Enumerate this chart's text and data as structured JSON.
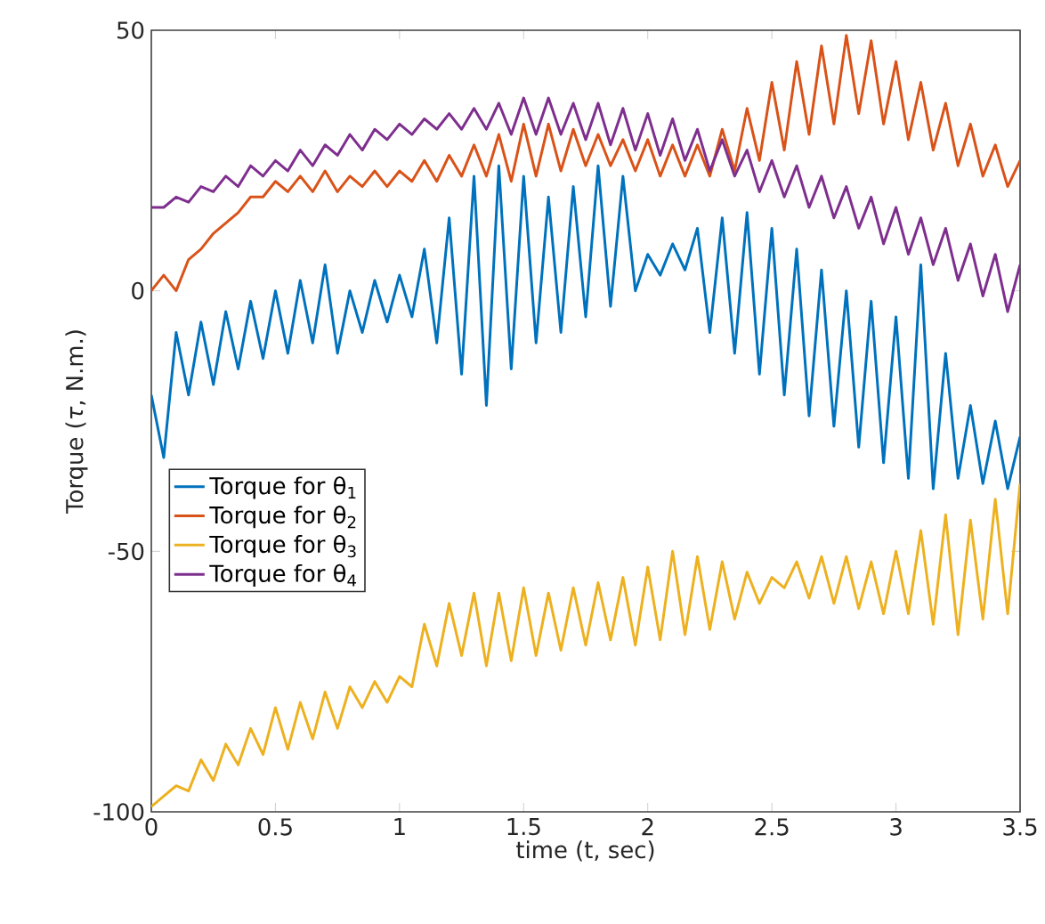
{
  "chart_data": {
    "type": "line",
    "xlabel": "time (t, sec)",
    "ylabel": "Torque (*τ*, N.m.)",
    "x": [
      0,
      0.05,
      0.1,
      0.15,
      0.2,
      0.25,
      0.3,
      0.35,
      0.4,
      0.45,
      0.5,
      0.55,
      0.6,
      0.65,
      0.7,
      0.75,
      0.8,
      0.85,
      0.9,
      0.95,
      1.0,
      1.05,
      1.1,
      1.15,
      1.2,
      1.25,
      1.3,
      1.35,
      1.4,
      1.45,
      1.5,
      1.55,
      1.6,
      1.65,
      1.7,
      1.75,
      1.8,
      1.85,
      1.9,
      1.95,
      2.0,
      2.05,
      2.1,
      2.15,
      2.2,
      2.25,
      2.3,
      2.35,
      2.4,
      2.45,
      2.5,
      2.55,
      2.6,
      2.65,
      2.7,
      2.75,
      2.8,
      2.85,
      2.9,
      2.95,
      3.0,
      3.05,
      3.1,
      3.15,
      3.2,
      3.25,
      3.3,
      3.35,
      3.4,
      3.45,
      3.5
    ],
    "series": [
      {
        "name": "Torque for θ$_{1}$",
        "color": "#0072bd",
        "values": [
          -20,
          -32,
          -8,
          -20,
          -6,
          -18,
          -4,
          -15,
          -2,
          -13,
          0,
          -12,
          2,
          -10,
          5,
          -12,
          0,
          -8,
          2,
          -6,
          3,
          -5,
          8,
          -10,
          14,
          -16,
          22,
          -22,
          24,
          -15,
          22,
          -10,
          18,
          -8,
          20,
          -5,
          24,
          -3,
          22,
          0,
          7,
          3,
          9,
          4,
          12,
          -8,
          14,
          -12,
          15,
          -16,
          12,
          -20,
          8,
          -24,
          4,
          -26,
          0,
          -30,
          -2,
          -33,
          -5,
          -36,
          5,
          -38,
          -12,
          -36,
          -22,
          -37,
          -25,
          -38,
          -28
        ]
      },
      {
        "name": "Torque for θ$_{2}$",
        "color": "#d95319",
        "values": [
          0,
          3,
          0,
          6,
          8,
          11,
          13,
          15,
          18,
          18,
          21,
          19,
          22,
          19,
          23,
          19,
          22,
          20,
          23,
          20,
          23,
          21,
          25,
          21,
          26,
          22,
          28,
          22,
          30,
          21,
          32,
          22,
          32,
          23,
          31,
          24,
          30,
          24,
          29,
          23,
          29,
          22,
          28,
          22,
          28,
          22,
          31,
          23,
          35,
          25,
          40,
          27,
          44,
          30,
          47,
          32,
          49,
          34,
          48,
          32,
          44,
          29,
          40,
          27,
          36,
          24,
          32,
          22,
          28,
          20,
          25
        ]
      },
      {
        "name": "Torque for θ$_{3}$",
        "color": "#edb120",
        "values": [
          -99,
          -97,
          -95,
          -96,
          -90,
          -94,
          -87,
          -91,
          -84,
          -89,
          -80,
          -88,
          -79,
          -86,
          -77,
          -84,
          -76,
          -80,
          -75,
          -79,
          -74,
          -76,
          -64,
          -72,
          -60,
          -70,
          -58,
          -72,
          -58,
          -71,
          -57,
          -70,
          -58,
          -69,
          -57,
          -68,
          -56,
          -67,
          -55,
          -68,
          -53,
          -67,
          -50,
          -66,
          -51,
          -65,
          -52,
          -63,
          -54,
          -60,
          -55,
          -57,
          -52,
          -59,
          -51,
          -60,
          -51,
          -61,
          -52,
          -62,
          -50,
          -62,
          -46,
          -64,
          -43,
          -66,
          -44,
          -63,
          -40,
          -62,
          -37
        ]
      },
      {
        "name": "Torque for θ$_{4}$",
        "color": "#7e2f8e",
        "values": [
          16,
          16,
          18,
          17,
          20,
          19,
          22,
          20,
          24,
          22,
          25,
          23,
          27,
          24,
          28,
          26,
          30,
          27,
          31,
          29,
          32,
          30,
          33,
          31,
          34,
          31,
          35,
          31,
          36,
          30,
          37,
          30,
          37,
          30,
          36,
          29,
          36,
          28,
          35,
          27,
          34,
          26,
          33,
          25,
          31,
          23,
          29,
          22,
          27,
          19,
          25,
          18,
          24,
          16,
          22,
          14,
          20,
          12,
          18,
          9,
          16,
          7,
          14,
          5,
          12,
          2,
          9,
          -1,
          7,
          -4,
          5
        ]
      }
    ],
    "xlim": [
      0,
      3.5
    ],
    "ylim": [
      -100,
      50
    ],
    "xticks": [
      0,
      0.5,
      1,
      1.5,
      2,
      2.5,
      3,
      3.5
    ],
    "yticks": [
      -100,
      -50,
      0,
      50
    ],
    "grid": false,
    "legend": "left",
    "marker": "none",
    "line_style": "solid"
  }
}
